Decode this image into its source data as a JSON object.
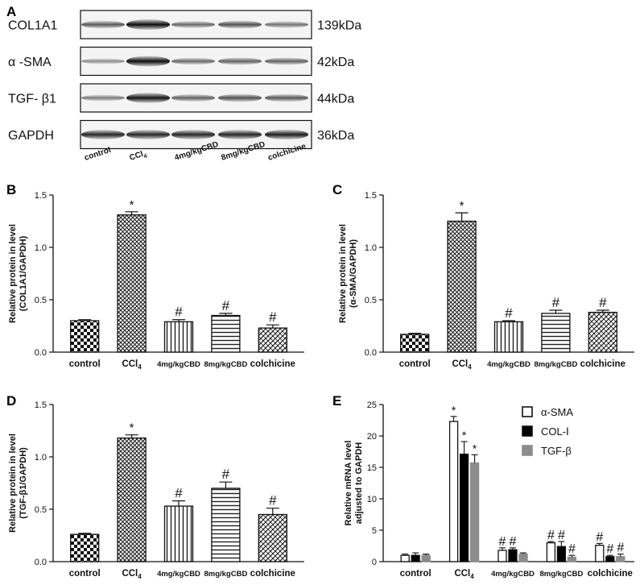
{
  "panels": {
    "A": "A",
    "B": "B",
    "C": "C",
    "D": "D",
    "E": "E"
  },
  "blot": {
    "rows": [
      {
        "label": "COL1A1",
        "size": "139kDa",
        "intensity": [
          0.55,
          1.0,
          0.45,
          0.6,
          0.4
        ]
      },
      {
        "label": "α -SMA",
        "size": "42kDa",
        "intensity": [
          0.25,
          1.0,
          0.45,
          0.5,
          0.5
        ]
      },
      {
        "label": "TGF- β1",
        "size": "44kDa",
        "intensity": [
          0.35,
          0.95,
          0.5,
          0.6,
          0.55
        ]
      },
      {
        "label": "GAPDH",
        "size": "36kDa",
        "intensity": [
          0.85,
          0.85,
          0.85,
          0.85,
          0.9
        ]
      }
    ],
    "lanes": [
      "control",
      "CCl4",
      "4mg/kgCBD",
      "8mg/kgCBD",
      "colchicine"
    ]
  },
  "chart_data": [
    {
      "panel": "B",
      "type": "bar",
      "categories": [
        "control",
        "CCl4",
        "4mg/kgCBD",
        "8mg/kgCBD",
        "colchicine"
      ],
      "values": [
        0.3,
        1.31,
        0.29,
        0.35,
        0.23
      ],
      "errors": [
        0.01,
        0.03,
        0.02,
        0.02,
        0.03
      ],
      "markers": [
        "",
        "*",
        "#",
        "#",
        "#"
      ],
      "patterns": [
        "checker",
        "crosshatch",
        "vlines",
        "hlines",
        "diag"
      ],
      "ylabel": [
        "Relative protein in level",
        "(COL1A1/GAPDH)"
      ],
      "ylim": [
        0,
        1.5
      ],
      "yticks": [
        "0.0",
        "0.5",
        "1.0",
        "1.5"
      ]
    },
    {
      "panel": "C",
      "type": "bar",
      "categories": [
        "control",
        "CCl4",
        "4mg/kgCBD",
        "8mg/kgCBD",
        "colchicine"
      ],
      "values": [
        0.17,
        1.25,
        0.29,
        0.37,
        0.38
      ],
      "errors": [
        0.01,
        0.08,
        0.01,
        0.03,
        0.02
      ],
      "markers": [
        "",
        "*",
        "#",
        "#",
        "#"
      ],
      "patterns": [
        "checker",
        "crosshatch",
        "vlines",
        "hlines",
        "diag"
      ],
      "ylabel": [
        "Relative protein in level",
        "(α-SMA/GAPDH)"
      ],
      "ylim": [
        0,
        1.5
      ],
      "yticks": [
        "0.0",
        "0.5",
        "1.0",
        "1.5"
      ]
    },
    {
      "panel": "D",
      "type": "bar",
      "categories": [
        "control",
        "CCl4",
        "4mg/kgCBD",
        "8mg/kgCBD",
        "colchicine"
      ],
      "values": [
        0.26,
        1.18,
        0.53,
        0.7,
        0.45
      ],
      "errors": [
        0.01,
        0.03,
        0.05,
        0.06,
        0.06
      ],
      "markers": [
        "",
        "*",
        "#",
        "#",
        "#"
      ],
      "patterns": [
        "checker",
        "crosshatch",
        "vlines",
        "hlines",
        "diag"
      ],
      "ylabel": [
        "Relative protein in level",
        "(TGF-β1/GAPDH)"
      ],
      "ylim": [
        0,
        1.5
      ],
      "yticks": [
        "0.0",
        "0.5",
        "1.0",
        "1.5"
      ]
    },
    {
      "panel": "E",
      "type": "bar",
      "categories": [
        "control",
        "CCl4",
        "4mg/kgCBD",
        "8mg/kgCBD",
        "colchicine"
      ],
      "series": [
        {
          "name": "α-SMA",
          "values": [
            1.0,
            22.3,
            1.8,
            3.0,
            2.6
          ],
          "errors": [
            0.2,
            0.8,
            0.4,
            0.2,
            0.3
          ],
          "markers": [
            "",
            "*",
            "#",
            "#",
            "#"
          ],
          "color": "#ffffff"
        },
        {
          "name": "COL-Ⅰ",
          "values": [
            1.0,
            17.1,
            1.9,
            2.4,
            0.8
          ],
          "errors": [
            0.4,
            2.0,
            0.3,
            0.8,
            0.2
          ],
          "markers": [
            "",
            "*",
            "#",
            "#",
            "#"
          ],
          "color": "#000000"
        },
        {
          "name": "TGF-β",
          "values": [
            1.0,
            15.7,
            1.2,
            0.7,
            0.8
          ],
          "errors": [
            0.2,
            1.3,
            0.2,
            0.3,
            0.4
          ],
          "markers": [
            "",
            "*",
            "",
            "#",
            "#"
          ],
          "color": "#8c8c8c"
        }
      ],
      "ylabel": [
        "Relative mRNA level",
        "adjusted to GAPDH"
      ],
      "ylim": [
        0,
        25
      ],
      "yticks": [
        "0",
        "5",
        "10",
        "15",
        "20",
        "25"
      ],
      "legend": "top-right"
    }
  ]
}
